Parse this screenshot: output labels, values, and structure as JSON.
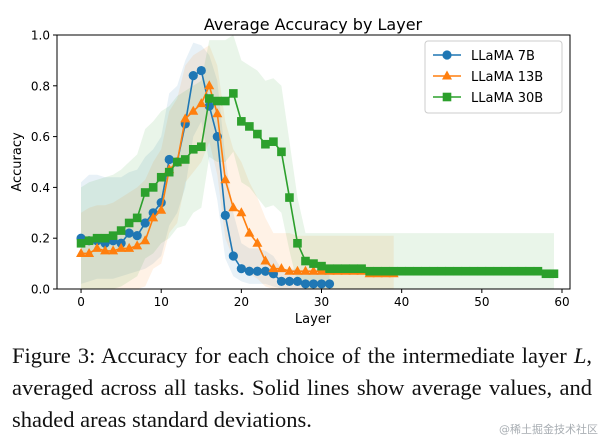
{
  "chart_data": {
    "type": "line",
    "title": "Average Accuracy by Layer",
    "xlabel": "Layer",
    "ylabel": "Accuracy",
    "xlim": [
      -3,
      61
    ],
    "ylim": [
      0,
      1.0
    ],
    "xticks": [
      0,
      10,
      20,
      30,
      40,
      50,
      60
    ],
    "yticks": [
      0.0,
      0.2,
      0.4,
      0.6,
      0.8,
      1.0
    ],
    "legend_position": "top-right",
    "grid": false,
    "series": [
      {
        "name": "LLaMA 7B",
        "color": "#1f77b4",
        "marker": "circle",
        "x": [
          0,
          1,
          2,
          3,
          4,
          5,
          6,
          7,
          8,
          9,
          10,
          11,
          12,
          13,
          14,
          15,
          16,
          17,
          18,
          19,
          20,
          21,
          22,
          23,
          24,
          25,
          26,
          27,
          28,
          29,
          30,
          31
        ],
        "values": [
          0.2,
          0.19,
          0.19,
          0.18,
          0.19,
          0.18,
          0.22,
          0.21,
          0.26,
          0.3,
          0.34,
          0.51,
          0.5,
          0.65,
          0.84,
          0.86,
          0.72,
          0.6,
          0.29,
          0.13,
          0.08,
          0.07,
          0.07,
          0.07,
          0.06,
          0.03,
          0.03,
          0.03,
          0.02,
          0.02,
          0.02,
          0.02
        ],
        "std_lower": [
          0.02,
          0.03,
          0.04,
          0.04,
          0.04,
          0.05,
          0.06,
          0.07,
          0.08,
          0.1,
          0.13,
          0.25,
          0.3,
          0.4,
          0.6,
          0.66,
          0.5,
          0.35,
          0.12,
          0.05,
          0.03,
          0.02,
          0.02,
          0.02,
          0.01,
          0.0,
          0.0,
          0.0,
          0.0,
          0.0,
          0.0,
          0.0
        ],
        "std_upper": [
          0.42,
          0.45,
          0.45,
          0.44,
          0.44,
          0.44,
          0.46,
          0.47,
          0.52,
          0.55,
          0.6,
          0.77,
          0.8,
          0.9,
          0.97,
          0.96,
          0.92,
          0.82,
          0.52,
          0.3,
          0.18,
          0.16,
          0.16,
          0.15,
          0.13,
          0.08,
          0.08,
          0.08,
          0.06,
          0.06,
          0.06,
          0.06
        ]
      },
      {
        "name": "LLaMA 13B",
        "color": "#ff7f0e",
        "marker": "triangle",
        "x": [
          0,
          1,
          2,
          3,
          4,
          5,
          6,
          7,
          8,
          9,
          10,
          11,
          12,
          13,
          14,
          15,
          16,
          17,
          18,
          19,
          20,
          21,
          22,
          23,
          24,
          25,
          26,
          27,
          28,
          29,
          30,
          31,
          32,
          33,
          34,
          35,
          36,
          37,
          38,
          39
        ],
        "values": [
          0.14,
          0.14,
          0.16,
          0.15,
          0.15,
          0.16,
          0.16,
          0.17,
          0.19,
          0.28,
          0.31,
          0.47,
          0.5,
          0.67,
          0.7,
          0.73,
          0.8,
          0.69,
          0.43,
          0.32,
          0.3,
          0.22,
          0.18,
          0.11,
          0.08,
          0.08,
          0.07,
          0.07,
          0.07,
          0.07,
          0.07,
          0.07,
          0.07,
          0.07,
          0.07,
          0.07,
          0.06,
          0.06,
          0.06,
          0.06
        ],
        "std_lower": [
          0.0,
          0.0,
          0.0,
          0.0,
          0.0,
          0.0,
          0.0,
          0.0,
          0.01,
          0.08,
          0.1,
          0.22,
          0.26,
          0.42,
          0.46,
          0.5,
          0.58,
          0.45,
          0.2,
          0.12,
          0.1,
          0.06,
          0.04,
          0.01,
          0.0,
          0.0,
          0.0,
          0.0,
          0.0,
          0.0,
          0.0,
          0.0,
          0.0,
          0.0,
          0.0,
          0.0,
          0.0,
          0.0,
          0.0,
          0.0
        ],
        "std_upper": [
          0.3,
          0.32,
          0.33,
          0.33,
          0.34,
          0.36,
          0.38,
          0.4,
          0.43,
          0.5,
          0.55,
          0.7,
          0.75,
          0.88,
          0.92,
          0.94,
          0.96,
          0.88,
          0.66,
          0.55,
          0.5,
          0.42,
          0.36,
          0.28,
          0.22,
          0.22,
          0.22,
          0.21,
          0.21,
          0.21,
          0.21,
          0.21,
          0.21,
          0.21,
          0.21,
          0.21,
          0.21,
          0.21,
          0.21,
          0.21
        ]
      },
      {
        "name": "LLaMA 30B",
        "color": "#2ca02c",
        "marker": "square",
        "x": [
          0,
          1,
          2,
          3,
          4,
          5,
          6,
          7,
          8,
          9,
          10,
          11,
          12,
          13,
          14,
          15,
          16,
          17,
          18,
          19,
          20,
          21,
          22,
          23,
          24,
          25,
          26,
          27,
          28,
          29,
          30,
          31,
          32,
          33,
          34,
          35,
          36,
          37,
          38,
          39,
          40,
          41,
          42,
          43,
          44,
          45,
          46,
          47,
          48,
          49,
          50,
          51,
          52,
          53,
          54,
          55,
          56,
          57,
          58,
          59
        ],
        "values": [
          0.18,
          0.19,
          0.2,
          0.2,
          0.21,
          0.23,
          0.26,
          0.28,
          0.38,
          0.4,
          0.44,
          0.46,
          0.5,
          0.51,
          0.55,
          0.56,
          0.75,
          0.74,
          0.74,
          0.77,
          0.66,
          0.64,
          0.61,
          0.57,
          0.58,
          0.54,
          0.36,
          0.18,
          0.11,
          0.1,
          0.09,
          0.08,
          0.08,
          0.08,
          0.08,
          0.08,
          0.07,
          0.07,
          0.07,
          0.07,
          0.07,
          0.07,
          0.07,
          0.07,
          0.07,
          0.07,
          0.07,
          0.07,
          0.07,
          0.07,
          0.07,
          0.07,
          0.07,
          0.07,
          0.07,
          0.07,
          0.07,
          0.07,
          0.06,
          0.06
        ],
        "std_lower": [
          0.0,
          0.0,
          0.0,
          0.0,
          0.0,
          0.01,
          0.03,
          0.05,
          0.12,
          0.14,
          0.18,
          0.2,
          0.24,
          0.25,
          0.3,
          0.32,
          0.52,
          0.5,
          0.5,
          0.54,
          0.42,
          0.4,
          0.36,
          0.32,
          0.33,
          0.3,
          0.15,
          0.02,
          0.0,
          0.0,
          0.0,
          0.0,
          0.0,
          0.0,
          0.0,
          0.0,
          0.0,
          0.0,
          0.0,
          0.0,
          0.0,
          0.0,
          0.0,
          0.0,
          0.0,
          0.0,
          0.0,
          0.0,
          0.0,
          0.0,
          0.0,
          0.0,
          0.0,
          0.0,
          0.0,
          0.0,
          0.0,
          0.0,
          0.0,
          0.0
        ],
        "std_upper": [
          0.4,
          0.42,
          0.43,
          0.44,
          0.45,
          0.47,
          0.5,
          0.53,
          0.63,
          0.66,
          0.7,
          0.72,
          0.76,
          0.78,
          0.8,
          0.82,
          0.98,
          0.98,
          0.98,
          1.0,
          0.9,
          0.88,
          0.86,
          0.82,
          0.83,
          0.8,
          0.58,
          0.36,
          0.22,
          0.22,
          0.22,
          0.22,
          0.22,
          0.22,
          0.22,
          0.22,
          0.22,
          0.22,
          0.22,
          0.22,
          0.22,
          0.22,
          0.22,
          0.22,
          0.22,
          0.22,
          0.22,
          0.22,
          0.22,
          0.22,
          0.22,
          0.22,
          0.22,
          0.22,
          0.22,
          0.22,
          0.22,
          0.22,
          0.22,
          0.22
        ]
      }
    ]
  },
  "caption": {
    "prefix": "Figure 3: Accuracy for each choice of the intermediate layer ",
    "variable": "L",
    "suffix": ", averaged across all tasks.  Solid lines show average values, and shaded areas standard deviations."
  },
  "watermark": "@稀土掘金技术社区"
}
